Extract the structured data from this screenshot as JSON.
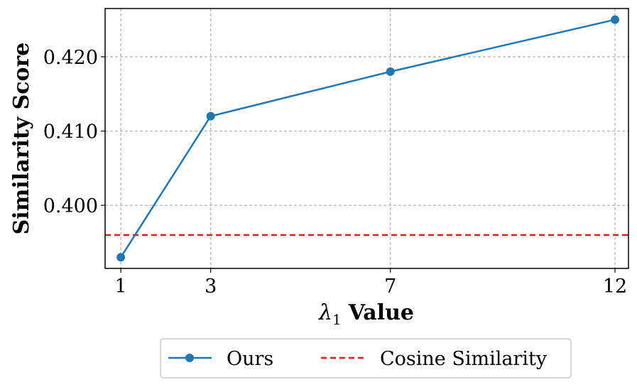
{
  "chart_data": {
    "type": "line",
    "title": "",
    "xlabel_symbol": "λ",
    "xlabel_subscript": "1",
    "xlabel_text": "Value",
    "ylabel": "Similarity Score",
    "x": [
      1,
      3,
      7,
      12
    ],
    "x_tick_labels": [
      "1",
      "3",
      "7",
      "12"
    ],
    "y_ticks": [
      0.4,
      0.41,
      0.42
    ],
    "y_tick_labels": [
      "0.400",
      "0.410",
      "0.420"
    ],
    "xlim": [
      0.65,
      12.3
    ],
    "ylim": [
      0.3915,
      0.4265
    ],
    "grid": true,
    "legend_position": "bottom-center",
    "series": [
      {
        "name": "Ours",
        "values": [
          0.393,
          0.412,
          0.418,
          0.425
        ],
        "color": "#1f77b4",
        "style": "solid-with-markers"
      }
    ],
    "reference_lines": [
      {
        "name": "Cosine Similarity",
        "y": 0.396,
        "color": "#e41a1c",
        "style": "dashed"
      }
    ]
  }
}
